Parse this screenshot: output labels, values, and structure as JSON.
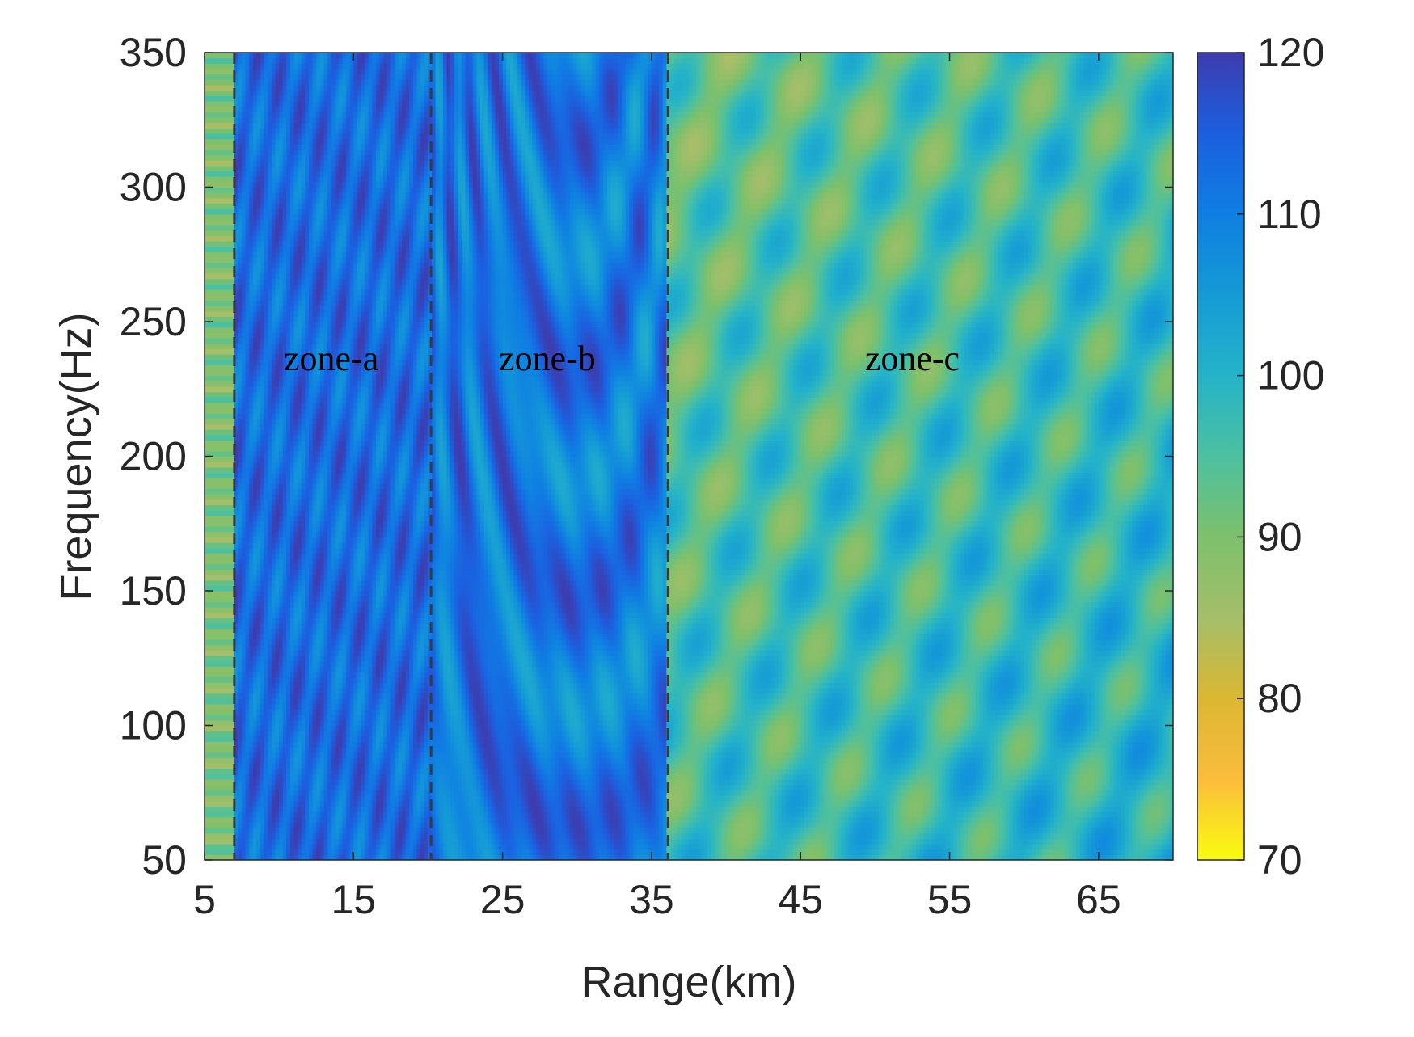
{
  "chart_data": {
    "type": "heatmap",
    "title": "",
    "xlabel": "Range(km)",
    "ylabel": "Frequency(Hz)",
    "xlim": [
      5,
      70
    ],
    "ylim": [
      50,
      350
    ],
    "x_ticks": [
      "5",
      "15",
      "25",
      "35",
      "45",
      "55",
      "65"
    ],
    "y_ticks": [
      "50",
      "100",
      "150",
      "200",
      "250",
      "300",
      "350"
    ],
    "colorbar": {
      "min": 70,
      "max": 120,
      "ticks": [
        "70",
        "80",
        "90",
        "100",
        "110",
        "120"
      ],
      "colormap": "parula",
      "reversed": true
    },
    "zone_boundaries_km": [
      7,
      20.2,
      36.1
    ],
    "zones": [
      {
        "label": "zone-a",
        "x": 13.5,
        "y": 232
      },
      {
        "label": "zone-b",
        "x": 28.0,
        "y": 232
      },
      {
        "label": "zone-c",
        "x": 52.5,
        "y": 232
      }
    ],
    "colormap_colors": [
      "#f9fb0e",
      "#fbbc3d",
      "#dbb732",
      "#a5be6a",
      "#7dc06b",
      "#4cc0a0",
      "#24b3c8",
      "#159bd6",
      "#0f7fe3",
      "#1c5fe0",
      "#3e3cae"
    ]
  }
}
